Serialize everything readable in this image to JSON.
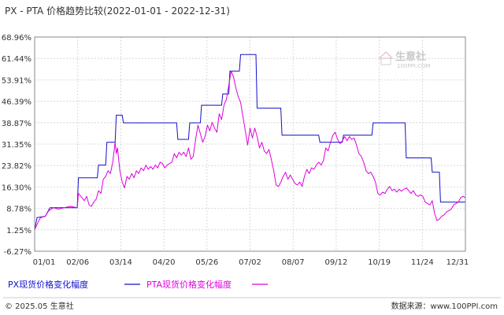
{
  "chart_data": {
    "type": "line",
    "title": "PX - PTA 价格趋势比较(2022-01-01 - 2022-12-31)",
    "xlabel": "",
    "ylabel": "",
    "x_ticks": [
      "01/01",
      "02/06",
      "03/14",
      "04/20",
      "05/26",
      "07/02",
      "08/07",
      "09/12",
      "10/19",
      "11/24",
      "12/31"
    ],
    "y_ticks": [
      "68.96%",
      "61.44%",
      "53.91%",
      "46.39%",
      "38.87%",
      "31.35%",
      "23.82%",
      "16.30%",
      "8.78%",
      "1.25%",
      "-6.27%"
    ],
    "ylim": [
      -6.27,
      68.96
    ],
    "grid": true,
    "series": [
      {
        "name": "PX现货价格变化幅度",
        "color": "#1010cc",
        "points": [
          [
            0,
            1.25
          ],
          [
            2,
            5.5
          ],
          [
            9,
            6.0
          ],
          [
            13,
            9.0
          ],
          [
            36,
            9.0
          ],
          [
            37,
            19.5
          ],
          [
            53,
            19.5
          ],
          [
            54,
            24.0
          ],
          [
            60,
            24.0
          ],
          [
            61,
            32.0
          ],
          [
            68,
            32.0
          ],
          [
            69,
            41.5
          ],
          [
            74,
            41.5
          ],
          [
            75,
            38.8
          ],
          [
            120,
            38.8
          ],
          [
            121,
            33.0
          ],
          [
            130,
            33.0
          ],
          [
            131,
            38.8
          ],
          [
            140,
            38.8
          ],
          [
            141,
            45.0
          ],
          [
            158,
            45.0
          ],
          [
            159,
            49.0
          ],
          [
            164,
            49.0
          ],
          [
            165,
            57.0
          ],
          [
            173,
            57.0
          ],
          [
            174,
            62.8
          ],
          [
            187,
            62.8
          ],
          [
            188,
            44.0
          ],
          [
            208,
            44.0
          ],
          [
            209,
            34.5
          ],
          [
            240,
            34.5
          ],
          [
            241,
            32.0
          ],
          [
            260,
            32.0
          ],
          [
            261,
            34.5
          ],
          [
            285,
            34.5
          ],
          [
            286,
            38.8
          ],
          [
            313,
            38.8
          ],
          [
            314,
            26.5
          ],
          [
            335,
            26.5
          ],
          [
            336,
            21.5
          ],
          [
            342,
            21.5
          ],
          [
            343,
            11.0
          ],
          [
            364,
            11.0
          ]
        ]
      },
      {
        "name": "PTA现货价格变化幅度",
        "color": "#dd00dd",
        "points": [
          [
            0,
            1.25
          ],
          [
            3,
            4.0
          ],
          [
            5,
            5.5
          ],
          [
            9,
            6.0
          ],
          [
            12,
            8.0
          ],
          [
            16,
            9.0
          ],
          [
            20,
            8.5
          ],
          [
            25,
            9.0
          ],
          [
            30,
            9.5
          ],
          [
            36,
            9.0
          ],
          [
            37,
            14.0
          ],
          [
            40,
            12.5
          ],
          [
            42,
            11.5
          ],
          [
            44,
            13.0
          ],
          [
            46,
            10.0
          ],
          [
            48,
            9.5
          ],
          [
            50,
            11.0
          ],
          [
            52,
            12.0
          ],
          [
            54,
            15.0
          ],
          [
            56,
            14.0
          ],
          [
            58,
            19.0
          ],
          [
            60,
            20.0
          ],
          [
            62,
            22.0
          ],
          [
            64,
            21.0
          ],
          [
            66,
            25.0
          ],
          [
            68,
            32.0
          ],
          [
            69,
            28.0
          ],
          [
            70,
            30.0
          ],
          [
            72,
            22.0
          ],
          [
            74,
            18.0
          ],
          [
            76,
            16.0
          ],
          [
            78,
            20.0
          ],
          [
            80,
            19.0
          ],
          [
            82,
            21.0
          ],
          [
            84,
            19.5
          ],
          [
            86,
            22.0
          ],
          [
            88,
            21.0
          ],
          [
            90,
            23.0
          ],
          [
            92,
            22.0
          ],
          [
            94,
            24.0
          ],
          [
            96,
            22.5
          ],
          [
            98,
            23.5
          ],
          [
            100,
            22.5
          ],
          [
            102,
            24.0
          ],
          [
            104,
            23.0
          ],
          [
            106,
            25.0
          ],
          [
            108,
            24.5
          ],
          [
            110,
            23.0
          ],
          [
            112,
            24.0
          ],
          [
            114,
            24.5
          ],
          [
            116,
            25.0
          ],
          [
            118,
            28.0
          ],
          [
            120,
            26.5
          ],
          [
            122,
            28.5
          ],
          [
            124,
            27.5
          ],
          [
            126,
            28.5
          ],
          [
            128,
            27.0
          ],
          [
            130,
            30.0
          ],
          [
            132,
            26.0
          ],
          [
            134,
            27.0
          ],
          [
            136,
            33.0
          ],
          [
            138,
            38.0
          ],
          [
            140,
            35.0
          ],
          [
            142,
            32.0
          ],
          [
            144,
            34.0
          ],
          [
            146,
            38.0
          ],
          [
            148,
            36.0
          ],
          [
            150,
            39.0
          ],
          [
            152,
            37.0
          ],
          [
            154,
            35.5
          ],
          [
            156,
            42.0
          ],
          [
            158,
            40.0
          ],
          [
            160,
            45.0
          ],
          [
            162,
            47.0
          ],
          [
            164,
            52.0
          ],
          [
            166,
            57.0
          ],
          [
            168,
            55.0
          ],
          [
            170,
            51.0
          ],
          [
            172,
            48.0
          ],
          [
            174,
            46.0
          ],
          [
            176,
            41.0
          ],
          [
            178,
            36.0
          ],
          [
            180,
            31.0
          ],
          [
            182,
            37.0
          ],
          [
            184,
            33.5
          ],
          [
            186,
            37.0
          ],
          [
            188,
            34.0
          ],
          [
            190,
            30.0
          ],
          [
            192,
            32.0
          ],
          [
            194,
            29.0
          ],
          [
            196,
            28.0
          ],
          [
            198,
            29.5
          ],
          [
            200,
            26.0
          ],
          [
            202,
            22.0
          ],
          [
            204,
            17.0
          ],
          [
            206,
            16.5
          ],
          [
            208,
            18.0
          ],
          [
            210,
            20.0
          ],
          [
            212,
            21.5
          ],
          [
            214,
            19.0
          ],
          [
            216,
            20.5
          ],
          [
            218,
            19.0
          ],
          [
            220,
            17.5
          ],
          [
            222,
            17.0
          ],
          [
            224,
            18.0
          ],
          [
            226,
            16.5
          ],
          [
            228,
            20.0
          ],
          [
            230,
            22.5
          ],
          [
            232,
            21.0
          ],
          [
            234,
            23.0
          ],
          [
            236,
            22.5
          ],
          [
            238,
            24.0
          ],
          [
            240,
            25.0
          ],
          [
            242,
            24.0
          ],
          [
            244,
            25.5
          ],
          [
            246,
            30.0
          ],
          [
            248,
            29.0
          ],
          [
            250,
            32.0
          ],
          [
            252,
            34.5
          ],
          [
            254,
            35.5
          ],
          [
            256,
            33.0
          ],
          [
            258,
            31.5
          ],
          [
            260,
            32.5
          ],
          [
            262,
            34.0
          ],
          [
            264,
            32.5
          ],
          [
            266,
            34.0
          ],
          [
            268,
            33.0
          ],
          [
            270,
            33.5
          ],
          [
            272,
            31.0
          ],
          [
            274,
            28.0
          ],
          [
            276,
            27.0
          ],
          [
            278,
            25.0
          ],
          [
            280,
            22.0
          ],
          [
            282,
            21.0
          ],
          [
            284,
            21.5
          ],
          [
            286,
            20.0
          ],
          [
            288,
            18.0
          ],
          [
            290,
            14.0
          ],
          [
            292,
            13.5
          ],
          [
            294,
            14.5
          ],
          [
            296,
            14.0
          ],
          [
            298,
            15.5
          ],
          [
            300,
            16.5
          ],
          [
            302,
            15.0
          ],
          [
            304,
            15.5
          ],
          [
            306,
            14.5
          ],
          [
            308,
            15.5
          ],
          [
            310,
            14.8
          ],
          [
            312,
            15.5
          ],
          [
            314,
            16.0
          ],
          [
            316,
            15.0
          ],
          [
            318,
            14.0
          ],
          [
            320,
            15.0
          ],
          [
            322,
            13.5
          ],
          [
            324,
            13.0
          ],
          [
            326,
            13.5
          ],
          [
            328,
            13.0
          ],
          [
            330,
            11.0
          ],
          [
            332,
            10.5
          ],
          [
            334,
            10.0
          ],
          [
            336,
            11.5
          ],
          [
            338,
            7.0
          ],
          [
            340,
            4.5
          ],
          [
            342,
            5.0
          ],
          [
            344,
            6.0
          ],
          [
            346,
            6.5
          ],
          [
            348,
            7.5
          ],
          [
            350,
            8.0
          ],
          [
            352,
            8.5
          ],
          [
            354,
            10.0
          ],
          [
            356,
            10.5
          ],
          [
            358,
            11.0
          ],
          [
            360,
            12.5
          ],
          [
            362,
            13.0
          ],
          [
            364,
            12.5
          ]
        ]
      }
    ]
  },
  "footer": {
    "copyright": "© 2025.05 生意社",
    "website": "数据来源：www.100PPI.com"
  },
  "watermark": {
    "brand": "生意社",
    "url": "100PPI.COM"
  }
}
